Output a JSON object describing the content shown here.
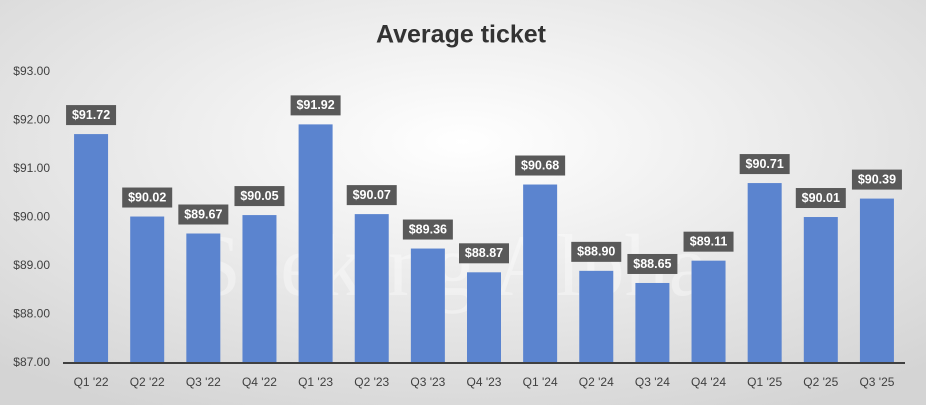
{
  "chart_data": {
    "type": "bar",
    "title": "Average ticket",
    "watermark": "Seeking Alpha",
    "categories": [
      "Q1 '22",
      "Q2 '22",
      "Q3 '22",
      "Q4 '22",
      "Q1 '23",
      "Q2 '23",
      "Q3 '23",
      "Q4 '23",
      "Q1 '24",
      "Q2 '24",
      "Q3 '24",
      "Q4 '24",
      "Q1 '25",
      "Q2 '25",
      "Q3 '25"
    ],
    "values": [
      91.72,
      90.02,
      89.67,
      90.05,
      91.92,
      90.07,
      89.36,
      88.87,
      90.68,
      88.9,
      88.65,
      89.11,
      90.71,
      90.01,
      90.39
    ],
    "value_labels": [
      "$91.72",
      "$90.02",
      "$89.67",
      "$90.05",
      "$91.92",
      "$90.07",
      "$89.36",
      "$88.87",
      "$90.68",
      "$88.90",
      "$88.65",
      "$89.11",
      "$90.71",
      "$90.01",
      "$90.39"
    ],
    "color": "#5b84cf",
    "ylim": [
      87,
      93
    ],
    "yticks": [
      {
        "value": 87,
        "label": "$87.00"
      },
      {
        "value": 88,
        "label": "$88.00"
      },
      {
        "value": 89,
        "label": "$89.00"
      },
      {
        "value": 90,
        "label": "$90.00"
      },
      {
        "value": 91,
        "label": "$91.00"
      },
      {
        "value": 92,
        "label": "$92.00"
      },
      {
        "value": 93,
        "label": "$93.00"
      }
    ],
    "grid": false
  }
}
